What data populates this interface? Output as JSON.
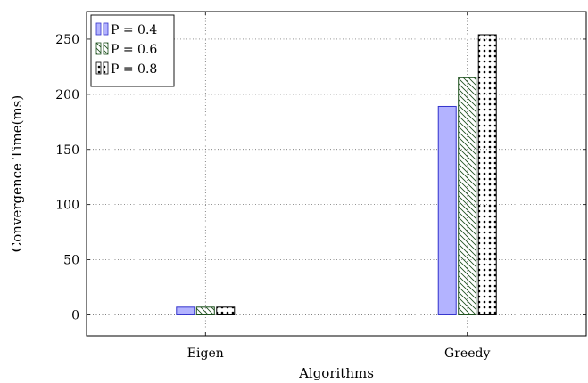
{
  "chart_data": {
    "type": "bar",
    "categories": [
      "Eigen",
      "Greedy"
    ],
    "series": [
      {
        "name": "P = 0.4",
        "values": [
          7,
          189
        ],
        "color": "#b3b3ff",
        "stroke": "#3333cc",
        "pattern": "solid"
      },
      {
        "name": "P = 0.6",
        "values": [
          7,
          215
        ],
        "color": "#ffffff",
        "stroke": "#1a4d1a",
        "pattern": "diagonal-hatch"
      },
      {
        "name": "P = 0.8",
        "values": [
          7,
          254
        ],
        "color": "#ffffff",
        "stroke": "#000000",
        "pattern": "dots"
      }
    ],
    "xlabel": "Algorithms",
    "ylabel": "Convergence Time(ms)",
    "ylim": [
      -19,
      275
    ],
    "yticks": [
      0,
      50,
      100,
      150,
      200,
      250
    ],
    "grid": true,
    "legend_position": "top-left"
  }
}
